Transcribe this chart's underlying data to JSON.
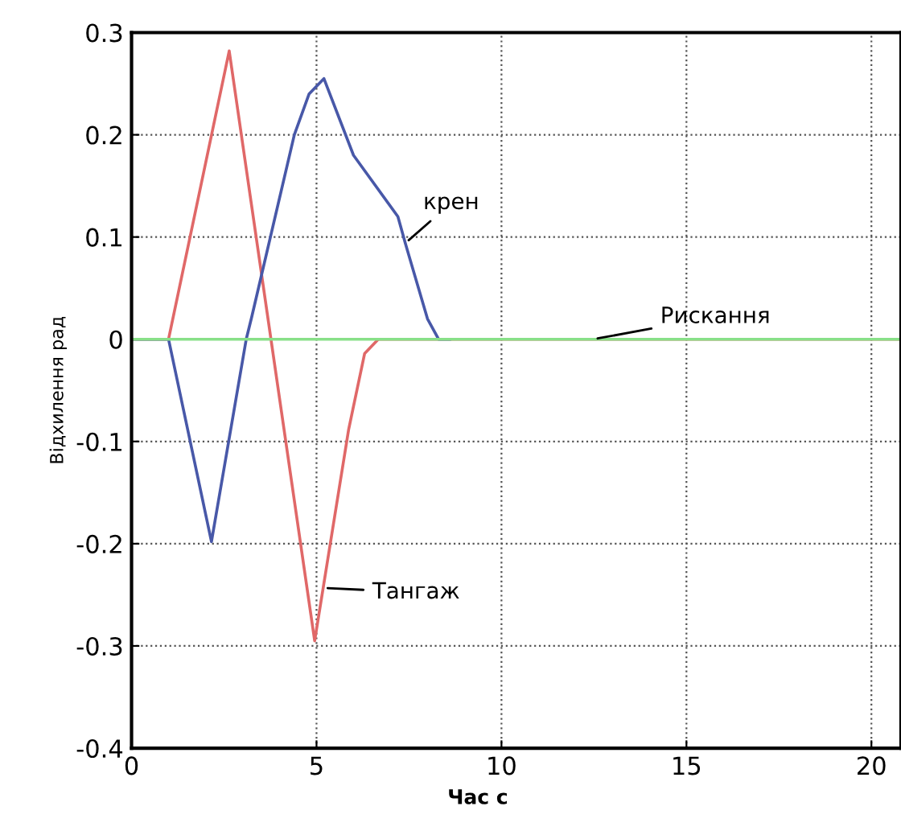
{
  "chart_data": {
    "type": "line",
    "xlabel": "Час с",
    "ylabel": "Відхилення рад",
    "xlim": [
      0,
      20.8
    ],
    "ylim": [
      -0.4,
      0.3
    ],
    "xticks": [
      0,
      5,
      10,
      15,
      20
    ],
    "yticks": [
      -0.4,
      -0.3,
      -0.2,
      -0.1,
      0,
      0.1,
      0.2,
      0.3
    ],
    "grid": true,
    "line_style": "solid",
    "series": [
      {
        "name": "Тангаж",
        "color": "#e06868",
        "x": [
          0,
          1.0,
          2.64,
          4.95,
          5.87,
          6.3,
          6.67,
          20.8
        ],
        "values": [
          0,
          0,
          0.282,
          -0.295,
          -0.088,
          -0.014,
          0,
          0
        ]
      },
      {
        "name": "крен",
        "color": "#4858a8",
        "x": [
          0,
          1.0,
          2.16,
          3.1,
          3.25,
          4.4,
          4.8,
          5.2,
          6.0,
          7.2,
          7.4,
          8.0,
          8.3,
          8.6
        ],
        "values": [
          0,
          0,
          -0.198,
          0,
          0.022,
          0.2,
          0.24,
          0.255,
          0.18,
          0.12,
          0.094,
          0.02,
          0,
          0
        ]
      },
      {
        "name": "Рискання",
        "color": "#88e088",
        "x": [
          0,
          20.8
        ],
        "values": [
          0,
          0
        ]
      }
    ]
  }
}
